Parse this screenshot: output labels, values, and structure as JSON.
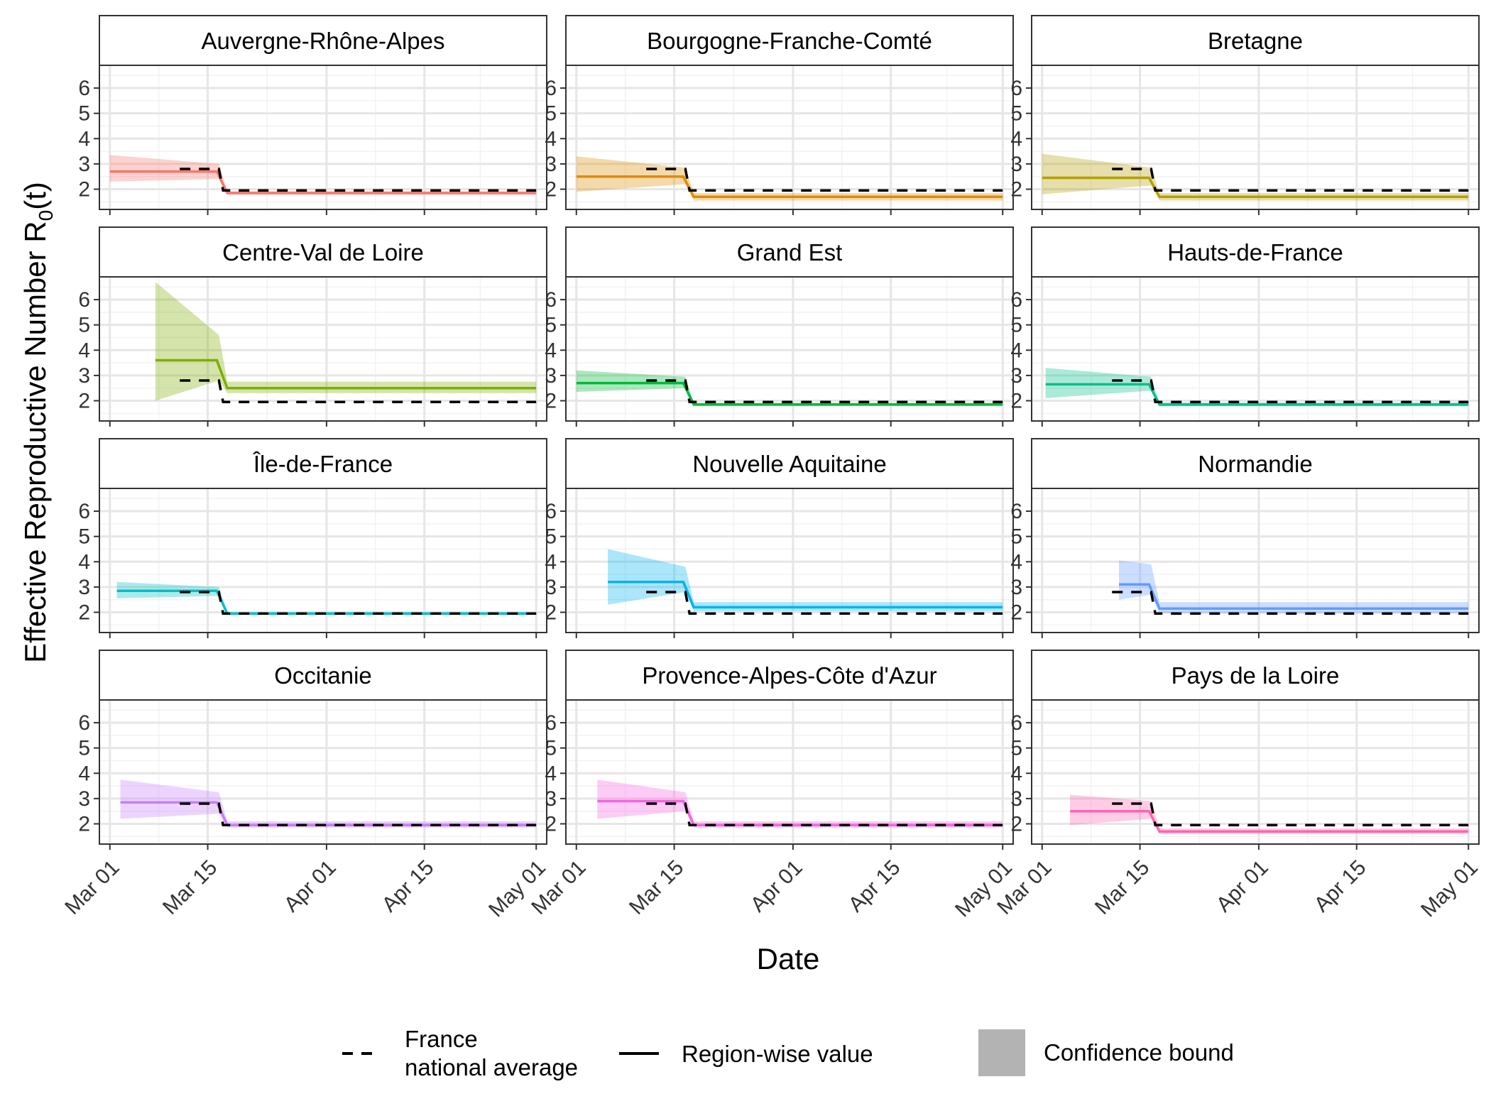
{
  "chart_data": {
    "type": "line",
    "layout": "facet-grid 4x3",
    "xlabel": "Date",
    "ylabel_main": "Effective Reproductive Number R",
    "ylabel_sub": "0",
    "ylabel_tail": "(t)",
    "x_ticks": [
      "Mar 01",
      "Mar 15",
      "Apr 01",
      "Apr 15",
      "May 01"
    ],
    "x_tick_days": [
      0,
      14,
      31,
      45,
      61
    ],
    "xlim": [
      -1.5,
      62.5
    ],
    "y_ticks": [
      "2",
      "3",
      "4",
      "5",
      "6"
    ],
    "ylim": [
      1.2,
      6.9
    ],
    "grid": true,
    "legend": {
      "position": "bottom",
      "dashed_label_line1": "France",
      "dashed_label_line2": "national average",
      "solid_label": "Region-wise value",
      "fill_label": "Confidence bound"
    },
    "national_average": {
      "before": 2.8,
      "after": 1.95,
      "change_day": 15.6
    },
    "change_day": 15.6,
    "panels": [
      {
        "title": "Auvergne-Rhône-Alpes",
        "color": "#F8766D",
        "start_day": 0,
        "nat_start_day": 10,
        "before": 2.7,
        "after": 1.85,
        "lo_start": 2.3,
        "hi_start": 3.35,
        "lo_end": 2.4,
        "hi_end": 3.0,
        "after_lo": 1.78,
        "after_hi": 1.92
      },
      {
        "title": "Bourgogne-Franche-Comté",
        "color": "#DE8C00",
        "start_day": 0,
        "nat_start_day": 10,
        "before": 2.5,
        "after": 1.7,
        "lo_start": 1.9,
        "hi_start": 3.3,
        "lo_end": 2.2,
        "hi_end": 2.85,
        "after_lo": 1.55,
        "after_hi": 1.85
      },
      {
        "title": "Bretagne",
        "color": "#B79F00",
        "start_day": 0,
        "nat_start_day": 10,
        "before": 2.45,
        "after": 1.7,
        "lo_start": 1.8,
        "hi_start": 3.4,
        "lo_end": 2.15,
        "hi_end": 2.85,
        "after_lo": 1.55,
        "after_hi": 1.85
      },
      {
        "title": "Centre-Val de Loire",
        "color": "#7CAE00",
        "start_day": 6.5,
        "nat_start_day": 10,
        "before": 3.6,
        "after": 2.5,
        "lo_start": 2.0,
        "hi_start": 6.7,
        "lo_end": 2.8,
        "hi_end": 4.6,
        "after_lo": 2.3,
        "after_hi": 2.75
      },
      {
        "title": "Grand Est",
        "color": "#00BA38",
        "start_day": 0,
        "nat_start_day": 10,
        "before": 2.7,
        "after": 1.85,
        "lo_start": 2.35,
        "hi_start": 3.2,
        "lo_end": 2.5,
        "hi_end": 2.95,
        "after_lo": 1.8,
        "after_hi": 1.92
      },
      {
        "title": "Hauts-de-France",
        "color": "#00C08B",
        "start_day": 0.5,
        "nat_start_day": 10,
        "before": 2.65,
        "after": 1.85,
        "lo_start": 2.1,
        "hi_start": 3.3,
        "lo_end": 2.4,
        "hi_end": 2.95,
        "after_lo": 1.78,
        "after_hi": 1.93
      },
      {
        "title": "Île-de-France",
        "color": "#00BFC4",
        "start_day": 1,
        "nat_start_day": 10,
        "before": 2.85,
        "after": 1.95,
        "lo_start": 2.55,
        "hi_start": 3.2,
        "lo_end": 2.65,
        "hi_end": 3.0,
        "after_lo": 1.9,
        "after_hi": 2.0
      },
      {
        "title": "Nouvelle Aquitaine",
        "color": "#00B4F0",
        "start_day": 4.5,
        "nat_start_day": 10,
        "before": 3.2,
        "after": 2.2,
        "lo_start": 2.3,
        "hi_start": 4.5,
        "lo_end": 2.8,
        "hi_end": 3.8,
        "after_lo": 2.05,
        "after_hi": 2.4
      },
      {
        "title": "Normandie",
        "color": "#619CFF",
        "start_day": 11,
        "nat_start_day": 10,
        "before": 3.1,
        "after": 2.15,
        "lo_start": 2.5,
        "hi_start": 4.05,
        "lo_end": 2.7,
        "hi_end": 3.9,
        "after_lo": 1.95,
        "after_hi": 2.4
      },
      {
        "title": "Occitanie",
        "color": "#C77CFF",
        "start_day": 1.5,
        "nat_start_day": 10,
        "before": 2.85,
        "after": 1.95,
        "lo_start": 2.2,
        "hi_start": 3.75,
        "lo_end": 2.4,
        "hi_end": 3.25,
        "after_lo": 1.85,
        "after_hi": 2.1
      },
      {
        "title": "Provence-Alpes-Côte d'Azur",
        "color": "#F564E3",
        "start_day": 3,
        "nat_start_day": 10,
        "before": 2.9,
        "after": 1.95,
        "lo_start": 2.2,
        "hi_start": 3.75,
        "lo_end": 2.5,
        "hi_end": 3.25,
        "after_lo": 1.85,
        "after_hi": 2.1
      },
      {
        "title": "Pays de la Loire",
        "color": "#FF64B0",
        "start_day": 4,
        "nat_start_day": 10,
        "before": 2.5,
        "after": 1.7,
        "lo_start": 1.95,
        "hi_start": 3.15,
        "lo_end": 2.2,
        "hi_end": 2.9,
        "after_lo": 1.6,
        "after_hi": 1.82
      }
    ]
  }
}
